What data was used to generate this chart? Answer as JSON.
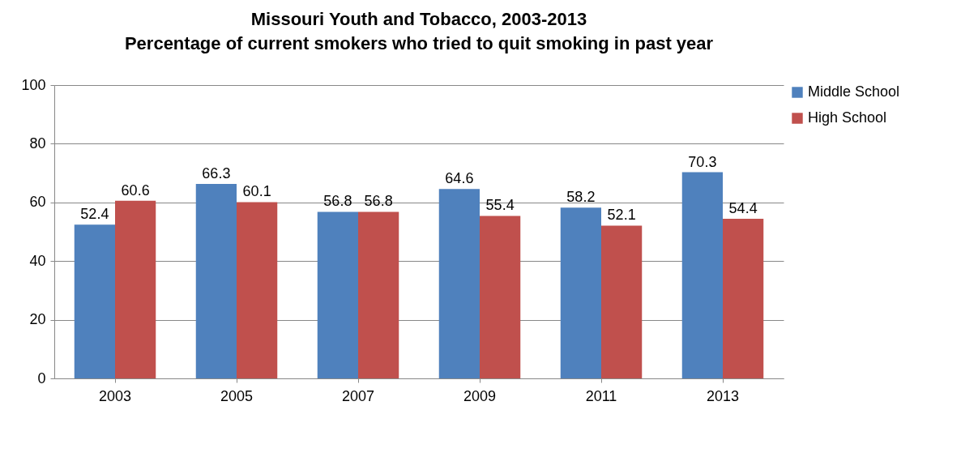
{
  "chart_data": {
    "type": "bar",
    "title": "Missouri Youth and Tobacco, 2003-2013",
    "subtitle": "Percentage of current smokers who tried to quit smoking in past year",
    "categories": [
      "2003",
      "2005",
      "2007",
      "2009",
      "2011",
      "2013"
    ],
    "series": [
      {
        "name": "Middle School",
        "color": "#4f81bd",
        "values": [
          52.4,
          66.3,
          56.8,
          64.6,
          58.2,
          70.3
        ]
      },
      {
        "name": "High School",
        "color": "#c0504d",
        "values": [
          60.6,
          60.1,
          56.8,
          55.4,
          52.1,
          54.4
        ]
      }
    ],
    "ylim": [
      0,
      100
    ],
    "yticks": [
      0,
      20,
      40,
      60,
      80,
      100
    ],
    "grid": "y",
    "legend": "right",
    "data_labels": true
  }
}
